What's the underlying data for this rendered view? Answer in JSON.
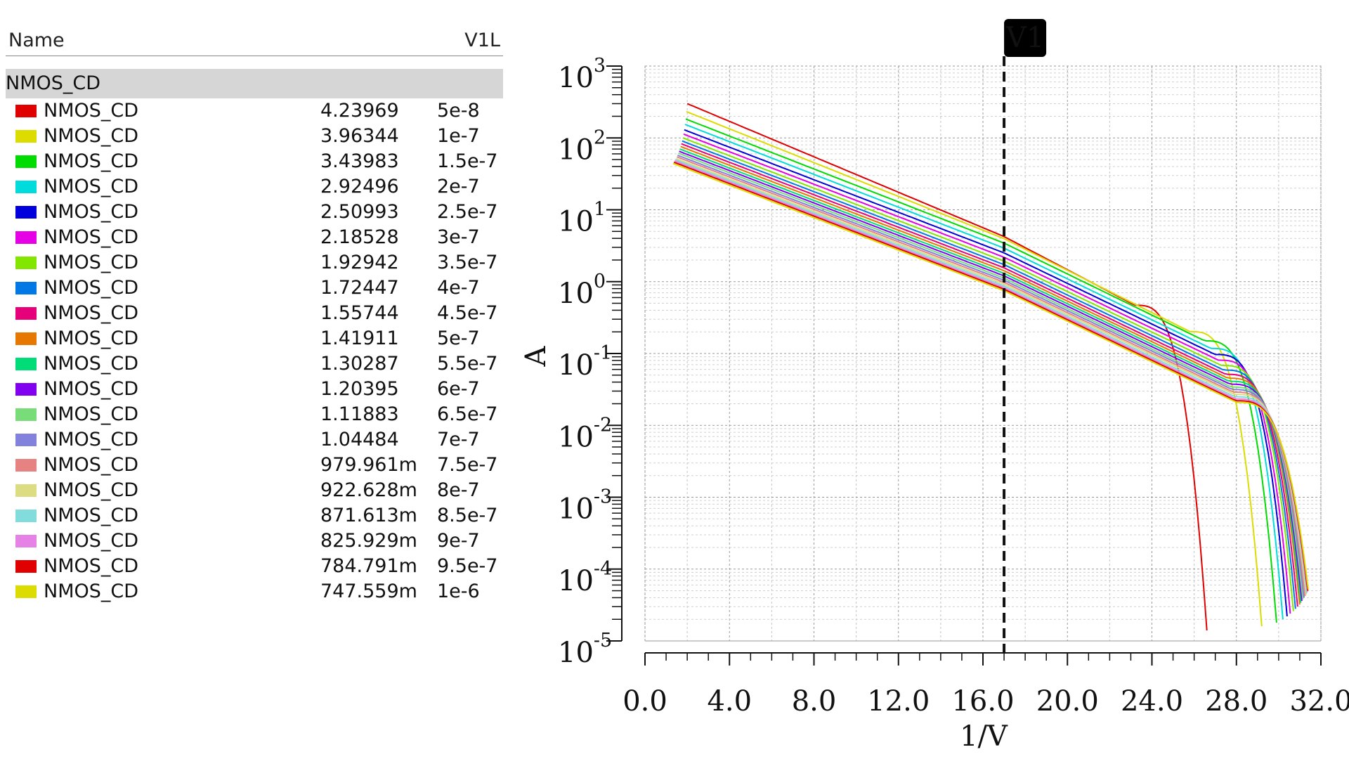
{
  "legend": {
    "header_name": "Name",
    "header_param": "V1L",
    "group": "NMOS_CD",
    "rows": [
      {
        "name": "NMOS_CD",
        "value": "4.23969",
        "param": "5e-8",
        "color": "#e00000"
      },
      {
        "name": "NMOS_CD",
        "value": "3.96344",
        "param": "1e-7",
        "color": "#dcdc00"
      },
      {
        "name": "NMOS_CD",
        "value": "3.43983",
        "param": "1.5e-7",
        "color": "#00dc00"
      },
      {
        "name": "NMOS_CD",
        "value": "2.92496",
        "param": "2e-7",
        "color": "#00dcdc"
      },
      {
        "name": "NMOS_CD",
        "value": "2.50993",
        "param": "2.5e-7",
        "color": "#0000dc"
      },
      {
        "name": "NMOS_CD",
        "value": "2.18528",
        "param": "3e-7",
        "color": "#e600e6"
      },
      {
        "name": "NMOS_CD",
        "value": "1.92942",
        "param": "3.5e-7",
        "color": "#82e600"
      },
      {
        "name": "NMOS_CD",
        "value": "1.72447",
        "param": "4e-7",
        "color": "#0078e6"
      },
      {
        "name": "NMOS_CD",
        "value": "1.55744",
        "param": "4.5e-7",
        "color": "#e6007a"
      },
      {
        "name": "NMOS_CD",
        "value": "1.41911",
        "param": "5e-7",
        "color": "#e67800"
      },
      {
        "name": "NMOS_CD",
        "value": "1.30287",
        "param": "5.5e-7",
        "color": "#00dc78"
      },
      {
        "name": "NMOS_CD",
        "value": "1.20395",
        "param": "6e-7",
        "color": "#8200f0"
      },
      {
        "name": "NMOS_CD",
        "value": "1.11883",
        "param": "6.5e-7",
        "color": "#78dc78"
      },
      {
        "name": "NMOS_CD",
        "value": "1.04484",
        "param": "7e-7",
        "color": "#8282dc"
      },
      {
        "name": "NMOS_CD",
        "value": "979.961m",
        "param": "7.5e-7",
        "color": "#e68282"
      },
      {
        "name": "NMOS_CD",
        "value": "922.628m",
        "param": "8e-7",
        "color": "#dcdc82"
      },
      {
        "name": "NMOS_CD",
        "value": "871.613m",
        "param": "8.5e-7",
        "color": "#82dcdc"
      },
      {
        "name": "NMOS_CD",
        "value": "825.929m",
        "param": "9e-7",
        "color": "#e682e6"
      },
      {
        "name": "NMOS_CD",
        "value": "784.791m",
        "param": "9.5e-7",
        "color": "#e00000"
      },
      {
        "name": "NMOS_CD",
        "value": "747.559m",
        "param": "1e-6",
        "color": "#dcdc00"
      }
    ]
  },
  "chart_data": {
    "type": "line",
    "title": "",
    "xlabel": "1/V",
    "ylabel": "A",
    "xlim": [
      0,
      32
    ],
    "ylim_exponents": [
      -5,
      3
    ],
    "yscale": "log",
    "x_ticks": [
      "0.0",
      "4.0",
      "8.0",
      "12.0",
      "16.0",
      "20.0",
      "24.0",
      "28.0",
      "32.0"
    ],
    "y_tick_base": "10",
    "y_tick_exponents": [
      "-5",
      "-4",
      "-3",
      "-2",
      "-1",
      "0",
      "1",
      "2",
      "3"
    ],
    "grid": true,
    "marker": {
      "label": "V1",
      "x": 17.0
    },
    "curve_end_x": [
      26.6,
      29.2,
      29.9,
      30.2,
      30.4,
      30.55,
      30.7,
      30.8,
      30.9,
      31.0,
      31.05,
      31.1,
      31.15,
      31.2,
      31.25,
      31.3,
      31.33,
      31.36,
      31.38,
      31.4
    ],
    "curve_start_value_at_x2": [
      300,
      230,
      180,
      150,
      125,
      108,
      95,
      85,
      77,
      70,
      64,
      59,
      55,
      51,
      48,
      45,
      43,
      41,
      39,
      37
    ],
    "series": [
      {
        "name": "V1L=5e-8",
        "value_at_marker": 4.23969
      },
      {
        "name": "V1L=1e-7",
        "value_at_marker": 3.96344
      },
      {
        "name": "V1L=1.5e-7",
        "value_at_marker": 3.43983
      },
      {
        "name": "V1L=2e-7",
        "value_at_marker": 2.92496
      },
      {
        "name": "V1L=2.5e-7",
        "value_at_marker": 2.50993
      },
      {
        "name": "V1L=3e-7",
        "value_at_marker": 2.18528
      },
      {
        "name": "V1L=3.5e-7",
        "value_at_marker": 1.92942
      },
      {
        "name": "V1L=4e-7",
        "value_at_marker": 1.72447
      },
      {
        "name": "V1L=4.5e-7",
        "value_at_marker": 1.55744
      },
      {
        "name": "V1L=5e-7",
        "value_at_marker": 1.41911
      },
      {
        "name": "V1L=5.5e-7",
        "value_at_marker": 1.30287
      },
      {
        "name": "V1L=6e-7",
        "value_at_marker": 1.20395
      },
      {
        "name": "V1L=6.5e-7",
        "value_at_marker": 1.11883
      },
      {
        "name": "V1L=7e-7",
        "value_at_marker": 1.04484
      },
      {
        "name": "V1L=7.5e-7",
        "value_at_marker": 0.979961
      },
      {
        "name": "V1L=8e-7",
        "value_at_marker": 0.922628
      },
      {
        "name": "V1L=8.5e-7",
        "value_at_marker": 0.871613
      },
      {
        "name": "V1L=9e-7",
        "value_at_marker": 0.825929
      },
      {
        "name": "V1L=9.5e-7",
        "value_at_marker": 0.784791
      },
      {
        "name": "V1L=1e-6",
        "value_at_marker": 0.747559
      }
    ]
  }
}
